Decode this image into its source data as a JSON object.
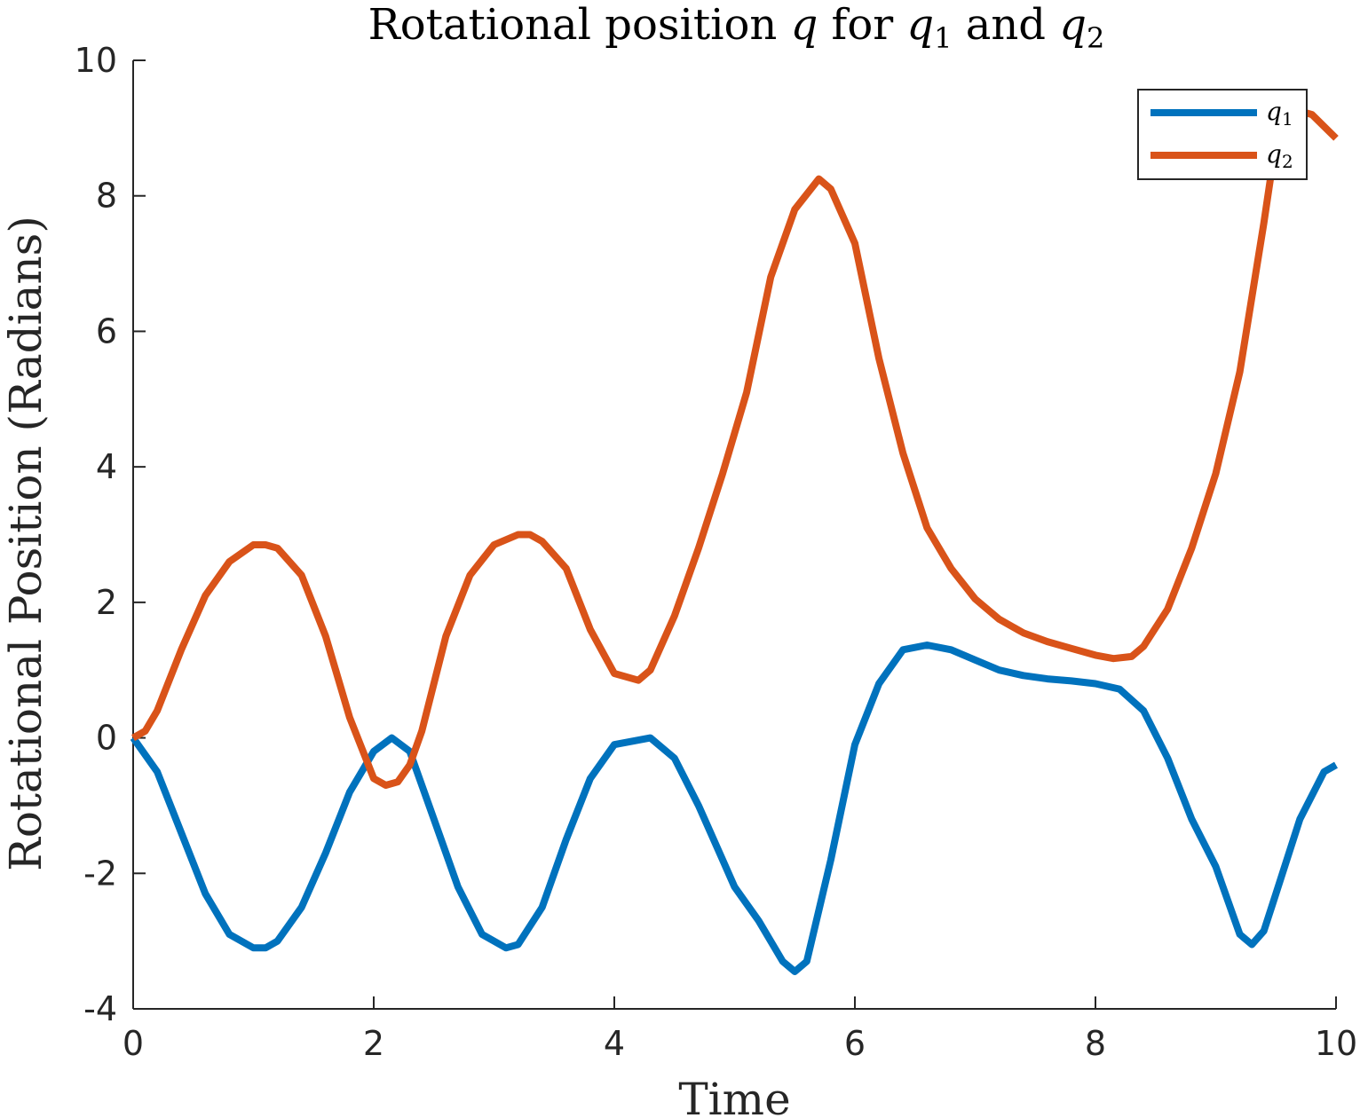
{
  "chart_data": {
    "type": "line",
    "title": "Rotational position q for q1 and q2",
    "title_parts": [
      {
        "text": "Rotational position ",
        "italic": false,
        "sub": false
      },
      {
        "text": "q",
        "italic": true,
        "sub": false
      },
      {
        "text": " for ",
        "italic": false,
        "sub": false
      },
      {
        "text": "q",
        "italic": true,
        "sub": false
      },
      {
        "text": "1",
        "italic": false,
        "sub": true
      },
      {
        "text": " and ",
        "italic": false,
        "sub": false
      },
      {
        "text": "q",
        "italic": true,
        "sub": false
      },
      {
        "text": "2",
        "italic": false,
        "sub": true
      }
    ],
    "xlabel": "Time",
    "ylabel": "Rotational Position (Radians)",
    "xlim": [
      0,
      10
    ],
    "ylim": [
      -4,
      10
    ],
    "xticks": [
      "0",
      "2",
      "4",
      "6",
      "8",
      "10"
    ],
    "yticks": [
      "-4",
      "-2",
      "0",
      "2",
      "4",
      "6",
      "8",
      "10"
    ],
    "grid": false,
    "legend_position": "top-right",
    "series": [
      {
        "name": "q1",
        "name_base": "q",
        "name_sub": "1",
        "color": "#0072BD",
        "x": [
          0,
          0.2,
          0.4,
          0.6,
          0.8,
          1.0,
          1.1,
          1.2,
          1.4,
          1.6,
          1.8,
          2.0,
          2.15,
          2.3,
          2.5,
          2.7,
          2.9,
          3.1,
          3.2,
          3.4,
          3.6,
          3.8,
          4.0,
          4.3,
          4.5,
          4.7,
          4.9,
          5.0,
          5.2,
          5.4,
          5.5,
          5.6,
          5.8,
          6.0,
          6.2,
          6.4,
          6.6,
          6.8,
          7.0,
          7.2,
          7.4,
          7.6,
          7.8,
          8.0,
          8.2,
          8.4,
          8.6,
          8.8,
          9.0,
          9.2,
          9.3,
          9.4,
          9.5,
          9.7,
          9.9,
          10.0
        ],
        "y": [
          0,
          -0.5,
          -1.4,
          -2.3,
          -2.9,
          -3.1,
          -3.1,
          -3.0,
          -2.5,
          -1.7,
          -0.8,
          -0.2,
          0,
          -0.2,
          -1.2,
          -2.2,
          -2.9,
          -3.1,
          -3.05,
          -2.5,
          -1.5,
          -0.6,
          -0.1,
          0,
          -0.3,
          -1.0,
          -1.8,
          -2.2,
          -2.7,
          -3.3,
          -3.45,
          -3.3,
          -1.8,
          -0.1,
          0.8,
          1.3,
          1.37,
          1.3,
          1.15,
          1.0,
          0.92,
          0.87,
          0.84,
          0.8,
          0.72,
          0.4,
          -0.3,
          -1.2,
          -1.9,
          -2.9,
          -3.05,
          -2.85,
          -2.3,
          -1.2,
          -0.5,
          -0.4
        ]
      },
      {
        "name": "q2",
        "name_base": "q",
        "name_sub": "2",
        "color": "#D95319",
        "x": [
          0,
          0.1,
          0.2,
          0.4,
          0.6,
          0.8,
          1.0,
          1.1,
          1.2,
          1.4,
          1.6,
          1.8,
          2.0,
          2.1,
          2.2,
          2.3,
          2.4,
          2.6,
          2.8,
          3.0,
          3.2,
          3.3,
          3.4,
          3.6,
          3.8,
          4.0,
          4.2,
          4.3,
          4.5,
          4.7,
          4.9,
          5.1,
          5.3,
          5.5,
          5.7,
          5.8,
          6.0,
          6.2,
          6.4,
          6.6,
          6.8,
          7.0,
          7.2,
          7.4,
          7.6,
          7.8,
          8.0,
          8.15,
          8.3,
          8.4,
          8.6,
          8.8,
          9.0,
          9.2,
          9.4,
          9.5,
          9.6,
          9.8,
          10.0
        ],
        "y": [
          0,
          0.1,
          0.4,
          1.3,
          2.1,
          2.6,
          2.85,
          2.85,
          2.8,
          2.4,
          1.5,
          0.3,
          -0.6,
          -0.7,
          -0.65,
          -0.4,
          0.1,
          1.5,
          2.4,
          2.85,
          3.0,
          3.0,
          2.9,
          2.5,
          1.6,
          0.95,
          0.85,
          1.0,
          1.8,
          2.8,
          3.9,
          5.1,
          6.8,
          7.8,
          8.25,
          8.1,
          7.3,
          5.6,
          4.2,
          3.1,
          2.5,
          2.05,
          1.75,
          1.55,
          1.42,
          1.32,
          1.22,
          1.17,
          1.2,
          1.35,
          1.9,
          2.8,
          3.9,
          5.4,
          7.6,
          8.8,
          9.3,
          9.2,
          8.85
        ]
      }
    ]
  }
}
